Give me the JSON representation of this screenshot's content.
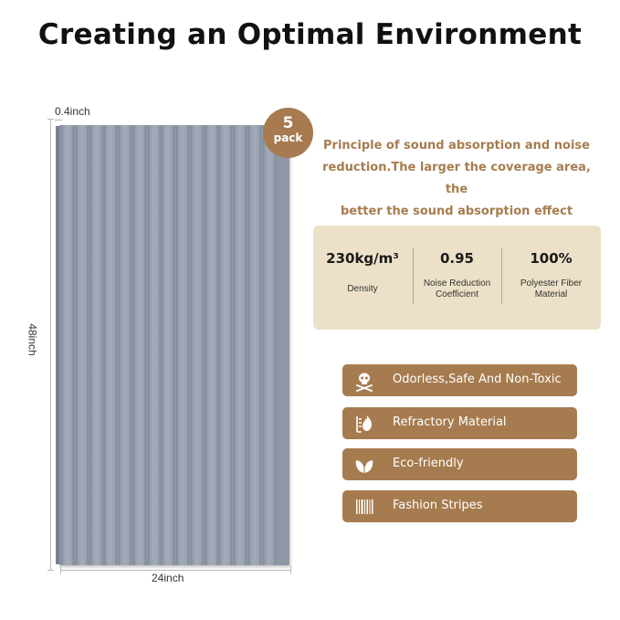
{
  "title": "Creating an Optimal Environment",
  "dimensions": {
    "thickness": "0.4inch",
    "height": "48inch",
    "width": "24inch"
  },
  "badge": {
    "count": "5",
    "unit": "pack"
  },
  "principle": {
    "line1": "Principle of sound absorption and noise",
    "line2": "reduction.The larger the coverage area, the",
    "line3": "better the sound absorption effect"
  },
  "stats": [
    {
      "value": "230kg/m³",
      "label_line1": "Density",
      "label_line2": ""
    },
    {
      "value": "0.95",
      "label_line1": "Noise Reduction",
      "label_line2": "Coefficient"
    },
    {
      "value": "100%",
      "label_line1": "Polyester Fiber",
      "label_line2": "Material"
    }
  ],
  "features": [
    {
      "label": "Odorless,Safe And Non-Toxic",
      "icon": "skull-crossbones-icon"
    },
    {
      "label": "Refractory Material",
      "icon": "fire-resistant-icon"
    },
    {
      "label": "Eco-friendly",
      "icon": "leaf-icon"
    },
    {
      "label": "Fashion Stripes",
      "icon": "stripes-icon"
    }
  ],
  "colors": {
    "accent_brown": "#a67b4f",
    "stat_box": "#ece1c8",
    "panel_gray": "#8e97a6",
    "principle_text": "#a67c4e"
  }
}
